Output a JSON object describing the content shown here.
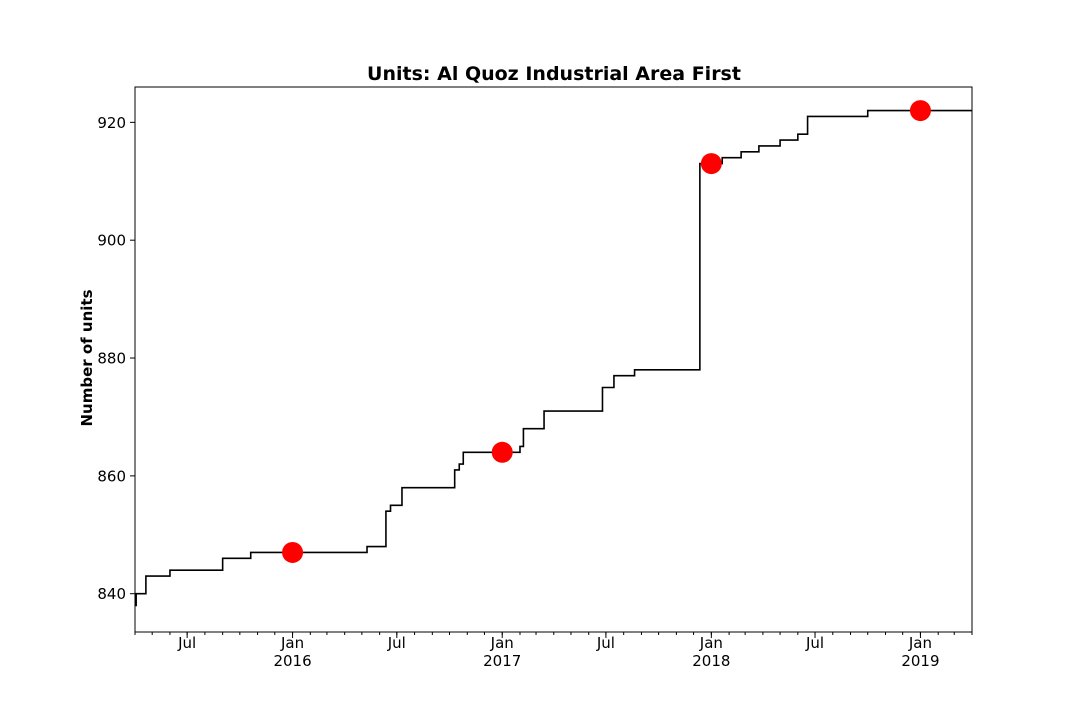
{
  "chart_data": {
    "type": "line",
    "title": "Units: Al Quoz Industrial Area First",
    "xlabel": "",
    "ylabel": "Number of units",
    "xlim": [
      "2015-04-01",
      "2019-04-01"
    ],
    "ylim": [
      833.5,
      926
    ],
    "yticks": [
      840,
      860,
      880,
      900,
      920
    ],
    "xticks_major": [
      {
        "date": "2015-07-01",
        "label": "Jul",
        "year": ""
      },
      {
        "date": "2016-01-01",
        "label": "Jan",
        "year": "2016"
      },
      {
        "date": "2016-07-01",
        "label": "Jul",
        "year": ""
      },
      {
        "date": "2017-01-01",
        "label": "Jan",
        "year": "2017"
      },
      {
        "date": "2017-07-01",
        "label": "Jul",
        "year": ""
      },
      {
        "date": "2018-01-01",
        "label": "Jan",
        "year": "2018"
      },
      {
        "date": "2018-07-01",
        "label": "Jul",
        "year": ""
      },
      {
        "date": "2019-01-01",
        "label": "Jan",
        "year": "2019"
      }
    ],
    "series": [
      {
        "style": "step",
        "color": "#000000",
        "points": [
          {
            "x": "2015-04-01",
            "y": 838
          },
          {
            "x": "2015-04-03",
            "y": 840
          },
          {
            "x": "2015-04-20",
            "y": 843
          },
          {
            "x": "2015-06-01",
            "y": 844
          },
          {
            "x": "2015-09-01",
            "y": 846
          },
          {
            "x": "2015-10-20",
            "y": 847
          },
          {
            "x": "2016-05-10",
            "y": 848
          },
          {
            "x": "2016-06-12",
            "y": 854
          },
          {
            "x": "2016-06-20",
            "y": 855
          },
          {
            "x": "2016-07-10",
            "y": 858
          },
          {
            "x": "2016-10-10",
            "y": 861
          },
          {
            "x": "2016-10-18",
            "y": 862
          },
          {
            "x": "2016-10-25",
            "y": 864
          },
          {
            "x": "2017-02-01",
            "y": 865
          },
          {
            "x": "2017-02-07",
            "y": 868
          },
          {
            "x": "2017-03-15",
            "y": 871
          },
          {
            "x": "2017-06-25",
            "y": 875
          },
          {
            "x": "2017-07-15",
            "y": 877
          },
          {
            "x": "2017-08-20",
            "y": 878
          },
          {
            "x": "2017-12-12",
            "y": 913
          },
          {
            "x": "2018-01-20",
            "y": 914
          },
          {
            "x": "2018-02-22",
            "y": 915
          },
          {
            "x": "2018-03-25",
            "y": 916
          },
          {
            "x": "2018-05-01",
            "y": 917
          },
          {
            "x": "2018-06-01",
            "y": 918
          },
          {
            "x": "2018-06-18",
            "y": 921
          },
          {
            "x": "2018-10-01",
            "y": 922
          },
          {
            "x": "2019-04-01",
            "y": 922
          }
        ]
      }
    ],
    "markers": [
      {
        "x": "2016-01-01",
        "y": 847,
        "color": "#ff0000"
      },
      {
        "x": "2017-01-01",
        "y": 864,
        "color": "#ff0000"
      },
      {
        "x": "2018-01-01",
        "y": 913,
        "color": "#ff0000"
      },
      {
        "x": "2019-01-01",
        "y": 922,
        "color": "#ff0000"
      }
    ],
    "grid": false,
    "legend": "none"
  }
}
